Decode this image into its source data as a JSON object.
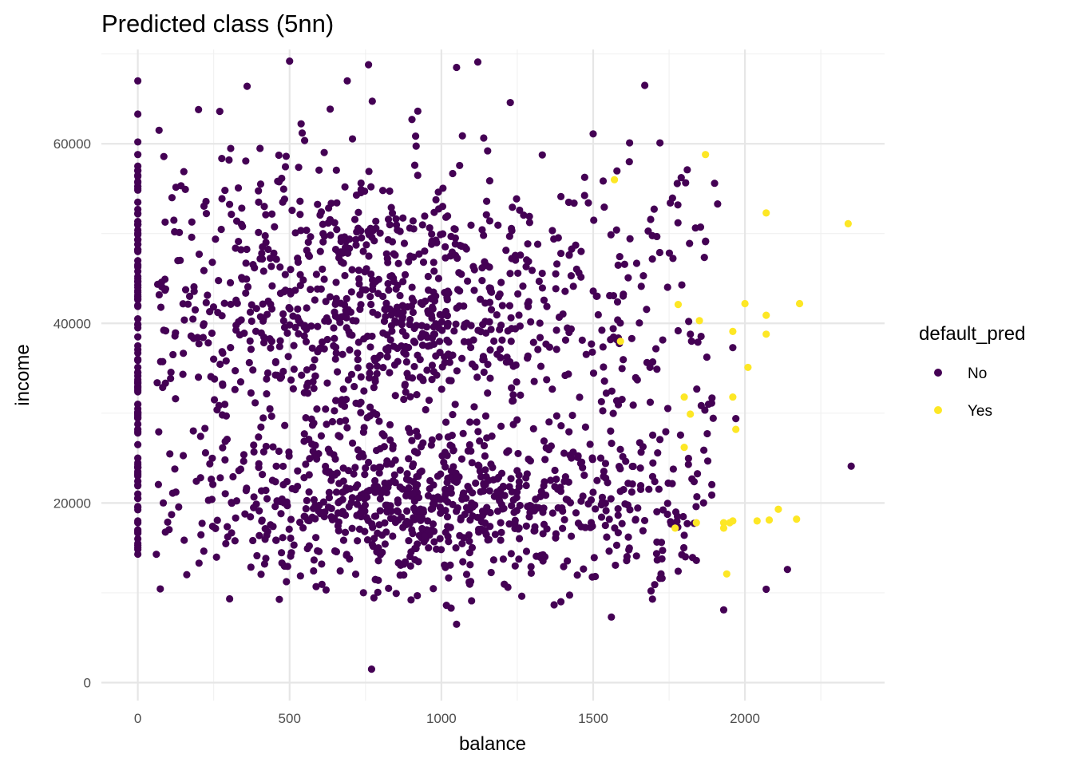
{
  "chart_data": {
    "type": "scatter",
    "title": "Predicted class (5nn)",
    "xlabel": "balance",
    "ylabel": "income",
    "xlim": [
      -120,
      2460
    ],
    "ylim": [
      -2000,
      70500
    ],
    "x_ticks": [
      0,
      500,
      1000,
      1500,
      2000
    ],
    "y_ticks": [
      0,
      20000,
      40000,
      60000
    ],
    "x_tick_labels": [
      "0",
      "500",
      "1000",
      "1500",
      "2000"
    ],
    "y_tick_labels": [
      "0",
      "20000",
      "40000",
      "60000"
    ],
    "grid": true,
    "legend": {
      "title": "default_pred",
      "position": "right",
      "entries": [
        {
          "label": "No",
          "color": "#440154"
        },
        {
          "label": "Yes",
          "color": "#FDE725"
        }
      ]
    },
    "series": [
      {
        "name": "No",
        "color": "#440154",
        "points_shown": "approximately 1960 points sampled from the dense cloud; representative outliers listed",
        "x": [
          0,
          0,
          0,
          0,
          0,
          0,
          0,
          0,
          0,
          0,
          0,
          0,
          0,
          0,
          0,
          0,
          0,
          0,
          0,
          0,
          0,
          0,
          0,
          0,
          0,
          0,
          0,
          0,
          0,
          0,
          0,
          0,
          0,
          0,
          0,
          0,
          0,
          0,
          0,
          0,
          0,
          0,
          0,
          0,
          0,
          0,
          0,
          0,
          0,
          0,
          500,
          1120,
          760,
          1050,
          360,
          690,
          1670,
          200,
          270,
          70,
          1500,
          1620,
          1720,
          1810,
          1900,
          1910,
          1870,
          2070,
          2140,
          2350,
          1930,
          770,
          1050,
          1560,
          1720,
          1780,
          1840,
          1800,
          1810,
          1960,
          1970,
          1880
        ],
        "y": [
          67000,
          63300,
          60200,
          58800,
          57000,
          55800,
          55000,
          53500,
          52200,
          51000,
          49300,
          48000,
          46500,
          45000,
          44000,
          42000,
          40500,
          39500,
          38500,
          37500,
          36000,
          34500,
          33000,
          31000,
          29500,
          28000,
          26500,
          25000,
          24000,
          23000,
          22000,
          21000,
          20500,
          19500,
          18000,
          17000,
          16000,
          15500,
          15000,
          14300,
          36700,
          42800,
          39900,
          35100,
          28200,
          32700,
          30100,
          45800,
          27800,
          17800,
          69200,
          69100,
          68800,
          68500,
          66400,
          67000,
          66500,
          63800,
          63600,
          61500,
          61100,
          60100,
          60100,
          57100,
          55600,
          53300,
          49100,
          10400,
          12600,
          24100,
          8100,
          1500,
          6500,
          7300,
          11600,
          12400,
          13600,
          16400,
          17700,
          37300,
          29400,
          31000
        ]
      },
      {
        "name": "Yes",
        "color": "#FDE725",
        "x": [
          1570,
          1870,
          2070,
          2340,
          1780,
          1850,
          1590,
          1960,
          2000,
          2070,
          2070,
          2180,
          2010,
          1960,
          1800,
          1820,
          1970,
          1800,
          1770,
          1840,
          1930,
          1950,
          1960,
          2040,
          2080,
          2110,
          2170,
          1940,
          1930
        ],
        "y": [
          56000,
          58800,
          52300,
          51100,
          42100,
          40300,
          38000,
          39100,
          42200,
          40900,
          38800,
          42200,
          35100,
          31800,
          31800,
          29900,
          28200,
          26200,
          17200,
          17800,
          17800,
          17800,
          18000,
          18000,
          18100,
          19300,
          18200,
          12100,
          17200
        ]
      }
    ]
  }
}
